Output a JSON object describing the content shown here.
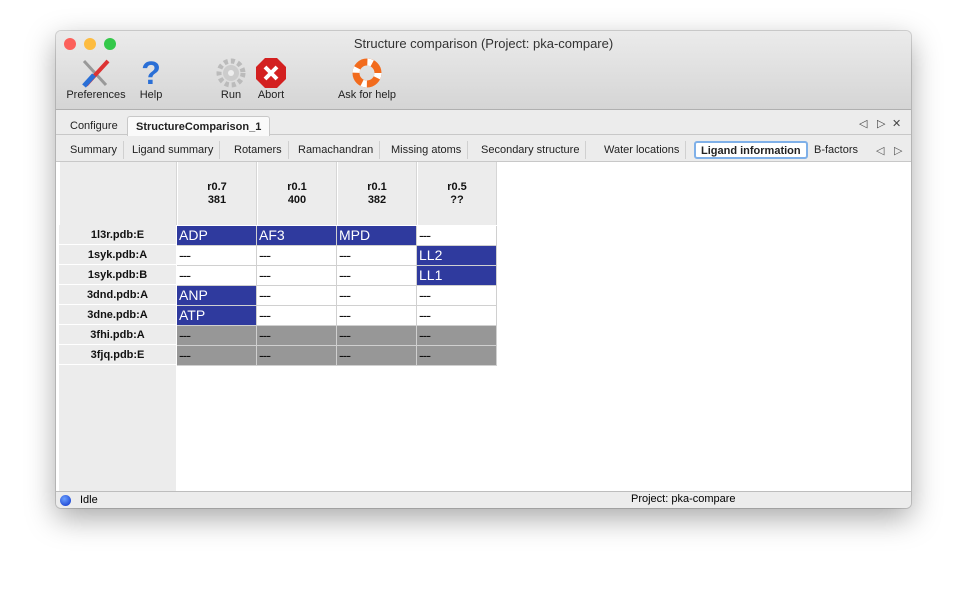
{
  "window": {
    "title": "Structure comparison (Project: pka-compare)"
  },
  "toolbar": [
    {
      "label": "Preferences",
      "icon": "tools-icon"
    },
    {
      "label": "Help",
      "icon": "help-icon"
    },
    {
      "label": "Run",
      "icon": "gear-icon"
    },
    {
      "label": "Abort",
      "icon": "abort-icon"
    },
    {
      "label": "Ask for help",
      "icon": "lifebuoy-icon"
    }
  ],
  "top_tabs": [
    "Configure",
    "StructureComparison_1"
  ],
  "sub_tabs": [
    "Summary",
    "Ligand summary",
    "Rotamers",
    "Ramachandran",
    "Missing atoms",
    "Secondary structure",
    "Water locations",
    "Ligand information",
    "B-factors"
  ],
  "active_sub_tab": "Ligand information",
  "table": {
    "columns": [
      {
        "line1": "r0.7",
        "line2": "381"
      },
      {
        "line1": "r0.1",
        "line2": "400"
      },
      {
        "line1": "r0.1",
        "line2": "382"
      },
      {
        "line1": "r0.5",
        "line2": "??"
      }
    ],
    "rows": [
      {
        "label": "1l3r.pdb:E",
        "cells": [
          "ADP",
          "AF3",
          "MPD",
          "---"
        ],
        "state": [
          "ligand",
          "ligand",
          "ligand",
          "none"
        ]
      },
      {
        "label": "1syk.pdb:A",
        "cells": [
          "---",
          "---",
          "---",
          "LL2"
        ],
        "state": [
          "none",
          "none",
          "none",
          "ligand"
        ]
      },
      {
        "label": "1syk.pdb:B",
        "cells": [
          "---",
          "---",
          "---",
          "LL1"
        ],
        "state": [
          "none",
          "none",
          "none",
          "ligand"
        ]
      },
      {
        "label": "3dnd.pdb:A",
        "cells": [
          "ANP",
          "---",
          "---",
          "---"
        ],
        "state": [
          "ligand",
          "none",
          "none",
          "none"
        ]
      },
      {
        "label": "3dne.pdb:A",
        "cells": [
          "ATP",
          "---",
          "---",
          "---"
        ],
        "state": [
          "ligand",
          "none",
          "none",
          "none"
        ]
      },
      {
        "label": "3fhi.pdb:A",
        "cells": [
          "---",
          "---",
          "---",
          "---"
        ],
        "state": [
          "missing",
          "missing",
          "missing",
          "missing"
        ]
      },
      {
        "label": "3fjq.pdb:E",
        "cells": [
          "---",
          "---",
          "---",
          "---"
        ],
        "state": [
          "missing",
          "missing",
          "missing",
          "missing"
        ]
      }
    ]
  },
  "colors": {
    "ligand": "#2f3a9e",
    "missing": "#979797",
    "none": "#ffffff"
  },
  "status": {
    "state": "Idle",
    "project": "Project: pka-compare"
  }
}
